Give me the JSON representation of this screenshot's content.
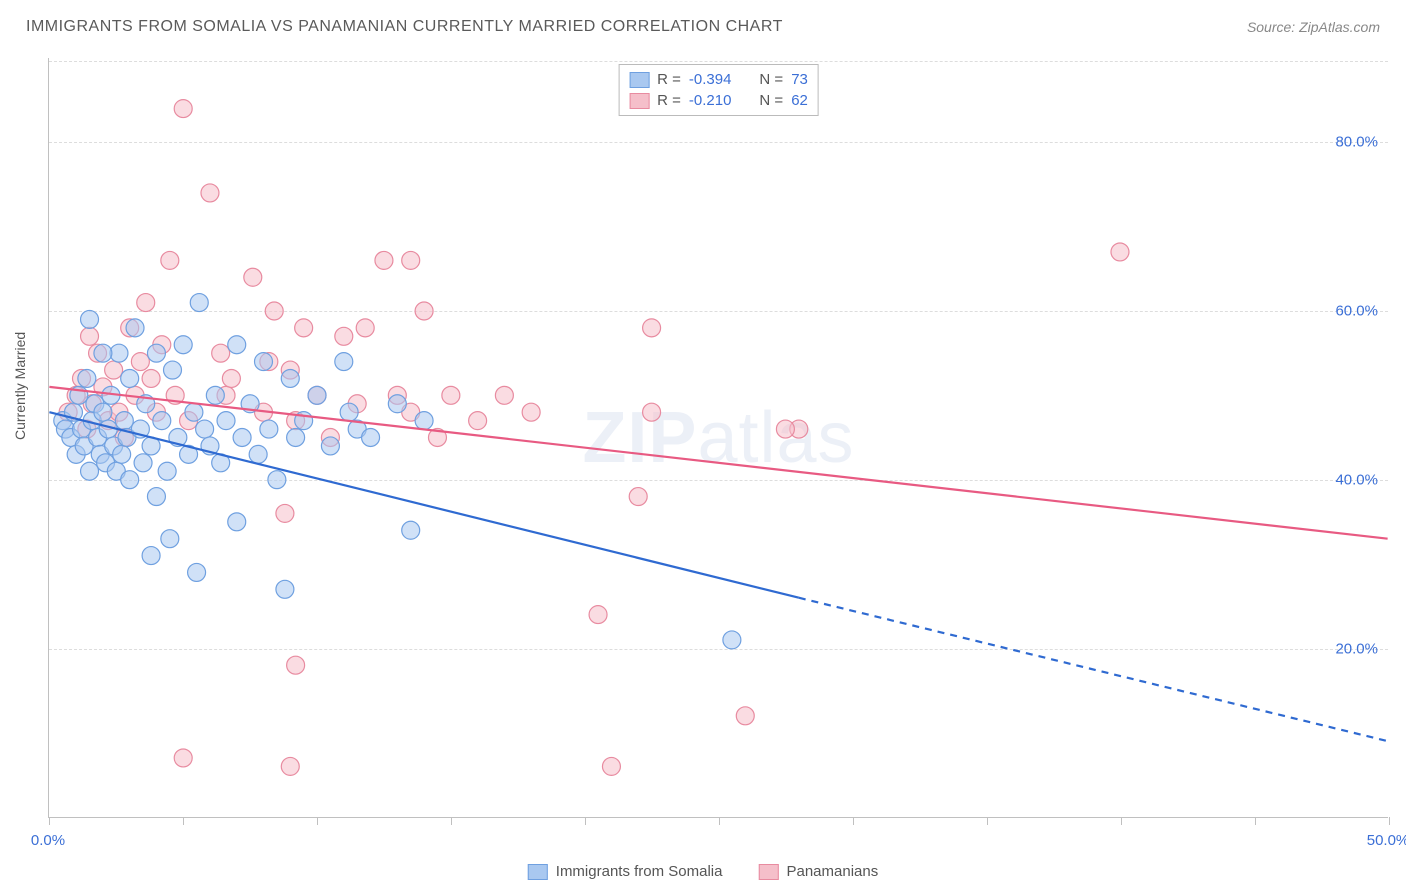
{
  "title": "IMMIGRANTS FROM SOMALIA VS PANAMANIAN CURRENTLY MARRIED CORRELATION CHART",
  "source": "Source: ZipAtlas.com",
  "y_axis_label": "Currently Married",
  "watermark": {
    "part1": "ZIP",
    "part2": "atlas"
  },
  "chart": {
    "type": "scatter",
    "xlim": [
      0,
      50
    ],
    "ylim": [
      0,
      90
    ],
    "x_ticks": [
      0,
      5,
      10,
      15,
      20,
      25,
      30,
      35,
      40,
      45,
      50
    ],
    "x_tick_labels": {
      "0": "0.0%",
      "50": "50.0%"
    },
    "y_gridlines": [
      20,
      40,
      60,
      80
    ],
    "y_tick_labels": [
      "20.0%",
      "40.0%",
      "60.0%",
      "80.0%"
    ],
    "background_color": "#ffffff",
    "grid_color": "#dddddd",
    "axis_color": "#c0c0c0",
    "label_color": "#3b6fd6",
    "marker_radius": 9,
    "marker_opacity": 0.55,
    "line_width": 2.2,
    "series": [
      {
        "name": "Immigrants from Somalia",
        "color_fill": "#a9c8f0",
        "color_stroke": "#6fa0e0",
        "line_color": "#2f6ad1",
        "R": "-0.394",
        "N": "73",
        "trend": {
          "x1": 0,
          "y1": 48,
          "x2_solid": 28,
          "y2_solid": 26,
          "x2_dash": 50,
          "y2_dash": 9
        },
        "points": [
          [
            0.5,
            47
          ],
          [
            0.6,
            46
          ],
          [
            0.8,
            45
          ],
          [
            0.9,
            48
          ],
          [
            1.0,
            43
          ],
          [
            1.1,
            50
          ],
          [
            1.2,
            46
          ],
          [
            1.3,
            44
          ],
          [
            1.4,
            52
          ],
          [
            1.5,
            41
          ],
          [
            1.6,
            47
          ],
          [
            1.7,
            49
          ],
          [
            1.8,
            45
          ],
          [
            1.9,
            43
          ],
          [
            2.0,
            48
          ],
          [
            2.1,
            42
          ],
          [
            2.2,
            46
          ],
          [
            2.3,
            50
          ],
          [
            2.4,
            44
          ],
          [
            2.5,
            41
          ],
          [
            2.6,
            55
          ],
          [
            2.7,
            43
          ],
          [
            2.8,
            47
          ],
          [
            2.9,
            45
          ],
          [
            3.0,
            40
          ],
          [
            3.2,
            58
          ],
          [
            3.4,
            46
          ],
          [
            3.5,
            42
          ],
          [
            3.6,
            49
          ],
          [
            3.8,
            44
          ],
          [
            4.0,
            55
          ],
          [
            4.2,
            47
          ],
          [
            4.4,
            41
          ],
          [
            4.6,
            53
          ],
          [
            4.8,
            45
          ],
          [
            5.0,
            56
          ],
          [
            5.2,
            43
          ],
          [
            5.4,
            48
          ],
          [
            5.6,
            61
          ],
          [
            5.8,
            46
          ],
          [
            6.0,
            44
          ],
          [
            6.2,
            50
          ],
          [
            6.4,
            42
          ],
          [
            6.6,
            47
          ],
          [
            7.0,
            56
          ],
          [
            7.2,
            45
          ],
          [
            7.5,
            49
          ],
          [
            7.8,
            43
          ],
          [
            8.0,
            54
          ],
          [
            8.2,
            46
          ],
          [
            8.5,
            40
          ],
          [
            9.0,
            52
          ],
          [
            9.2,
            45
          ],
          [
            9.5,
            47
          ],
          [
            8.8,
            27
          ],
          [
            10.0,
            50
          ],
          [
            10.5,
            44
          ],
          [
            11.0,
            54
          ],
          [
            11.2,
            48
          ],
          [
            11.5,
            46
          ],
          [
            12.0,
            45
          ],
          [
            13.0,
            49
          ],
          [
            13.5,
            34
          ],
          [
            14.0,
            47
          ],
          [
            1.5,
            59
          ],
          [
            2.0,
            55
          ],
          [
            3.0,
            52
          ],
          [
            4.0,
            38
          ],
          [
            4.5,
            33
          ],
          [
            3.8,
            31
          ],
          [
            5.5,
            29
          ],
          [
            7.0,
            35
          ],
          [
            25.5,
            21
          ]
        ]
      },
      {
        "name": "Panamanians",
        "color_fill": "#f5bfca",
        "color_stroke": "#e88ba0",
        "line_color": "#e85a82",
        "R": "-0.210",
        "N": "62",
        "trend": {
          "x1": 0,
          "y1": 51,
          "x2_solid": 50,
          "y2_solid": 33,
          "x2_dash": 50,
          "y2_dash": 33
        },
        "points": [
          [
            0.7,
            48
          ],
          [
            1.0,
            50
          ],
          [
            1.2,
            52
          ],
          [
            1.4,
            46
          ],
          [
            1.6,
            49
          ],
          [
            1.8,
            55
          ],
          [
            2.0,
            51
          ],
          [
            2.2,
            47
          ],
          [
            2.4,
            53
          ],
          [
            2.6,
            48
          ],
          [
            2.8,
            45
          ],
          [
            3.0,
            58
          ],
          [
            3.2,
            50
          ],
          [
            3.4,
            54
          ],
          [
            3.6,
            61
          ],
          [
            3.8,
            52
          ],
          [
            4.0,
            48
          ],
          [
            4.2,
            56
          ],
          [
            4.5,
            66
          ],
          [
            4.7,
            50
          ],
          [
            5.0,
            84
          ],
          [
            5.2,
            47
          ],
          [
            1.5,
            57
          ],
          [
            6.0,
            74
          ],
          [
            6.4,
            55
          ],
          [
            6.6,
            50
          ],
          [
            6.8,
            52
          ],
          [
            7.6,
            64
          ],
          [
            8.0,
            48
          ],
          [
            8.2,
            54
          ],
          [
            8.4,
            60
          ],
          [
            8.8,
            36
          ],
          [
            9.0,
            53
          ],
          [
            9.2,
            47
          ],
          [
            9.5,
            58
          ],
          [
            10.0,
            50
          ],
          [
            10.5,
            45
          ],
          [
            11.0,
            57
          ],
          [
            11.5,
            49
          ],
          [
            12.5,
            66
          ],
          [
            13.0,
            50
          ],
          [
            13.5,
            48
          ],
          [
            14.0,
            60
          ],
          [
            14.5,
            45
          ],
          [
            15.0,
            50
          ],
          [
            16.0,
            47
          ],
          [
            9.2,
            18
          ],
          [
            9.0,
            6
          ],
          [
            5.0,
            7
          ],
          [
            20.5,
            24
          ],
          [
            22.0,
            38
          ],
          [
            22.5,
            48
          ],
          [
            22.5,
            58
          ],
          [
            26.0,
            12
          ],
          [
            28.0,
            46
          ],
          [
            18.0,
            48
          ],
          [
            17.0,
            50
          ],
          [
            11.8,
            58
          ],
          [
            13.5,
            66
          ],
          [
            40.0,
            67
          ],
          [
            27.5,
            46
          ],
          [
            21.0,
            6
          ]
        ]
      }
    ]
  },
  "legend_top": {
    "r_label": "R =",
    "n_label": "N ="
  },
  "legend_bottom": {}
}
